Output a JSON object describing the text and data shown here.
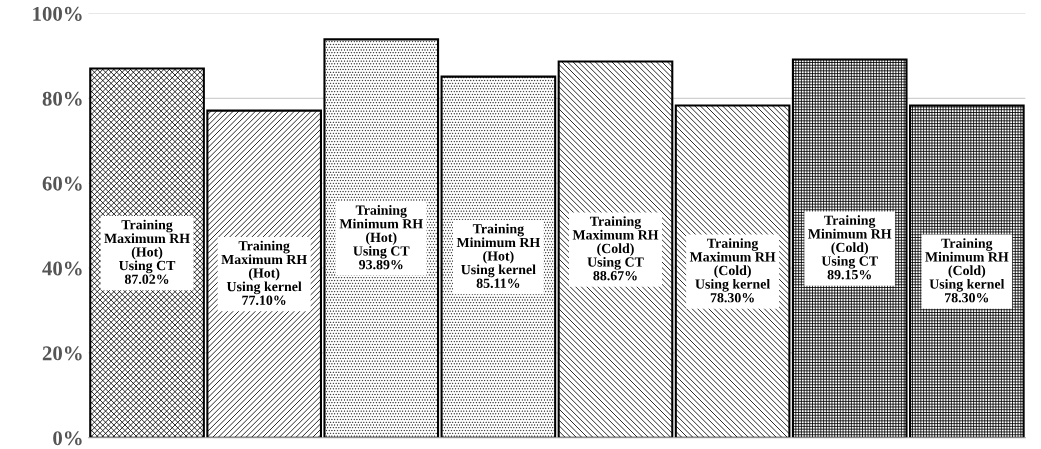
{
  "chart_data": {
    "type": "bar",
    "categories": [
      "Training\nMaximum RH\n(Hot)\nUsing CT",
      "Training\nMaximum RH\n(Hot)\nUsing kernel",
      "Training\nMinimum RH\n(Hot)\nUsing CT",
      "Training\nMinimum RH\n(Hot)\nUsing kernel",
      "Training\nMaximum RH\n(Cold)\nUsing CT",
      "Training\nMaximum RH\n(Cold)\nUsing kernel",
      "Training\nMinimum RH\n(Cold)\nUsing CT",
      "Training\nMinimum RH\n(Cold)\nUsing kernel"
    ],
    "values": [
      87.02,
      77.1,
      93.89,
      85.11,
      88.67,
      78.3,
      89.15,
      78.3
    ],
    "value_labels": [
      "87.02%",
      "77.10%",
      "93.89%",
      "85.11%",
      "88.67%",
      "78.30%",
      "89.15%",
      "78.30%"
    ],
    "color": "#000000",
    "ylim": [
      0,
      100
    ],
    "yticks": [
      {
        "value": 0,
        "label": "0%"
      },
      {
        "value": 20,
        "label": "20%"
      },
      {
        "value": 40,
        "label": "40%"
      },
      {
        "value": 60,
        "label": "60%"
      },
      {
        "value": 80,
        "label": "80%"
      },
      {
        "value": 100,
        "label": "100%"
      }
    ],
    "grid": "y",
    "legend": false
  }
}
